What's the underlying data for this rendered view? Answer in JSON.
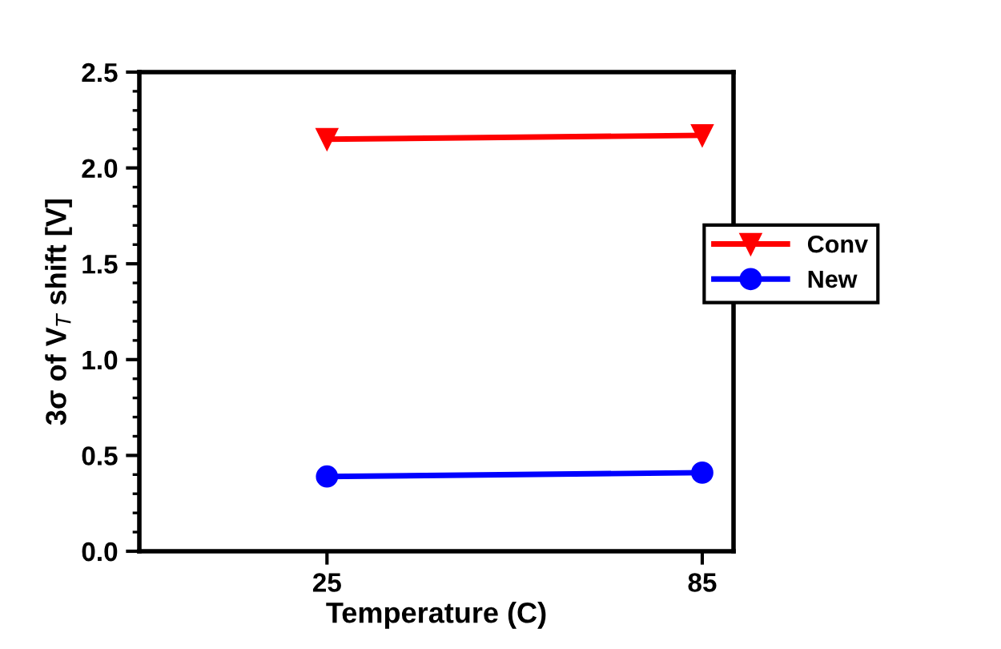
{
  "chart_data": {
    "type": "line",
    "xlabel": "Temperature (C)",
    "ylabel": "3σ of V$_{T}$ shift [V]",
    "x": [
      25,
      85
    ],
    "xlim": [
      -5,
      90
    ],
    "xticks": [
      25,
      85
    ],
    "ylim": [
      0,
      2.5
    ],
    "yticks": [
      {
        "value": 0,
        "label": "0.0"
      },
      {
        "value": 0.5,
        "label": "0.5"
      },
      {
        "value": 1,
        "label": "1.0"
      },
      {
        "value": 1.5,
        "label": "1.5"
      },
      {
        "value": 2,
        "label": "2.0"
      },
      {
        "value": 2.5,
        "label": "2.5"
      }
    ],
    "series": [
      {
        "name": "Conv",
        "color": "#ff0000",
        "values": [
          2.15,
          2.17
        ],
        "marker": "triangle"
      },
      {
        "name": "New",
        "color": "#0000ff",
        "values": [
          0.39,
          0.41
        ],
        "marker": "circle"
      }
    ],
    "grid": false,
    "legend": "right"
  }
}
